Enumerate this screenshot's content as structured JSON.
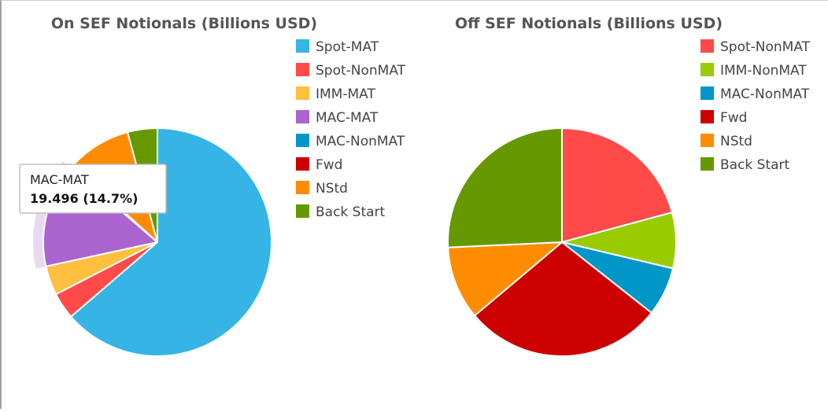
{
  "chart_data": [
    {
      "type": "pie",
      "title": "On SEF Notionals (Billions USD)",
      "legend_position": "right",
      "slices": [
        {
          "label": "Spot-MAT",
          "value": 84.5,
          "color": "#35b4e5"
        },
        {
          "label": "Spot-NonMAT",
          "value": 5.0,
          "color": "#ff4a4a"
        },
        {
          "label": "IMM-MAT",
          "value": 5.5,
          "color": "#ffbf3f"
        },
        {
          "label": "MAC-MAT",
          "value": 19.496,
          "color": "#ab64cf"
        },
        {
          "label": "MAC-NonMAT",
          "value": 0.4,
          "color": "#0097c8"
        },
        {
          "label": "Fwd",
          "value": 0.2,
          "color": "#cc0000"
        },
        {
          "label": "NStd",
          "value": 12.0,
          "color": "#ff8c00"
        },
        {
          "label": "Back Start",
          "value": 5.6,
          "color": "#669900"
        }
      ],
      "tooltip": {
        "label": "MAC-MAT",
        "value": "19.496 (14.7%)"
      }
    },
    {
      "type": "pie",
      "title": "Off SEF Notionals (Billions USD)",
      "legend_position": "right",
      "slices": [
        {
          "label": "Spot-NonMAT",
          "value": 21.0,
          "color": "#ff4a4a"
        },
        {
          "label": "IMM-NonMAT",
          "value": 8.0,
          "color": "#99cc00"
        },
        {
          "label": "MAC-NonMAT",
          "value": 7.0,
          "color": "#0097c8"
        },
        {
          "label": "Fwd",
          "value": 28.5,
          "color": "#cc0000"
        },
        {
          "label": "NStd",
          "value": 10.5,
          "color": "#ff8c00"
        },
        {
          "label": "Back Start",
          "value": 26.0,
          "color": "#669900"
        }
      ]
    }
  ]
}
